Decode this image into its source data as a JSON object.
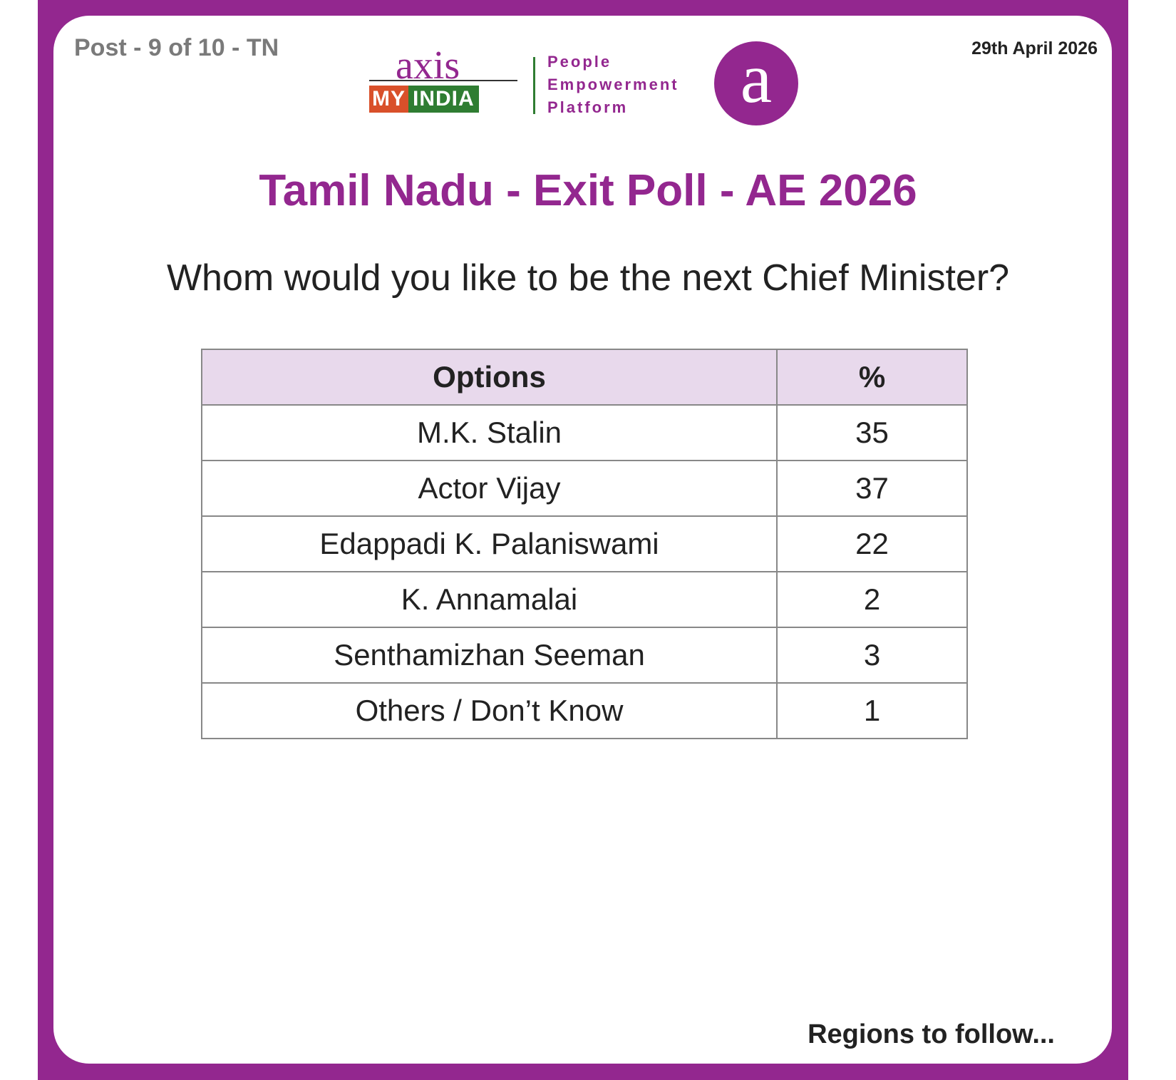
{
  "header": {
    "post": "Post - 9 of 10 - TN",
    "date": "29th April 2026",
    "logo": {
      "brand": "axis",
      "sub_left": "MY",
      "sub_right": "INDIA",
      "tagline": [
        "People",
        "Empowerment",
        "Platform"
      ],
      "icon": "a"
    }
  },
  "title": "Tamil Nadu - Exit Poll - AE 2026",
  "question": "Whom would you like to be the next Chief Minister?",
  "table": {
    "columns": [
      "Options",
      "%"
    ],
    "rows": [
      [
        "M.K. Stalin",
        35
      ],
      [
        "Actor Vijay",
        37
      ],
      [
        "Edappadi K. Palaniswami",
        22
      ],
      [
        "K. Annamalai",
        2
      ],
      [
        "Senthamizhan Seeman",
        3
      ],
      [
        "Others / Don’t Know",
        1
      ]
    ]
  },
  "footer": "Regions to follow..."
}
